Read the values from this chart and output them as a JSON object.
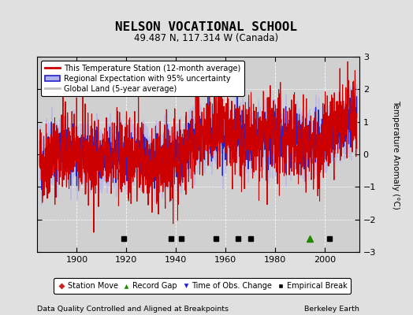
{
  "title": "NELSON VOCATIONAL SCHOOL",
  "subtitle": "49.487 N, 117.314 W (Canada)",
  "ylabel": "Temperature Anomaly (°C)",
  "xlabel_left": "Data Quality Controlled and Aligned at Breakpoints",
  "xlabel_right": "Berkeley Earth",
  "ylim": [
    -3,
    3
  ],
  "xlim": [
    1884,
    2014
  ],
  "yticks": [
    -3,
    -2,
    -1,
    0,
    1,
    2,
    3
  ],
  "xticks": [
    1900,
    1920,
    1940,
    1960,
    1980,
    2000
  ],
  "background_color": "#e0e0e0",
  "plot_bg_color": "#d0d0d0",
  "red_line_color": "#cc0000",
  "blue_line_color": "#2222cc",
  "blue_fill_color": "#b0b0ee",
  "gray_line_color": "#c0c0c0",
  "legend_label_red": "This Temperature Station (12-month average)",
  "legend_label_blue": "Regional Expectation with 95% uncertainty",
  "legend_label_gray": "Global Land (5-year average)",
  "marker_empirical_x": [
    1919,
    1938,
    1942,
    1956,
    1965,
    1970,
    2002
  ],
  "marker_gap_x": [
    1994
  ],
  "seed": 42,
  "years_start": 1885,
  "years_end": 2013
}
